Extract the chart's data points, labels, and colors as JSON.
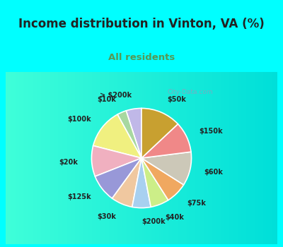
{
  "title": "Income distribution in Vinton, VA (%)",
  "subtitle": "All residents",
  "title_fontsize": 12,
  "subtitle_fontsize": 9.5,
  "bg_cyan": "#00FFFF",
  "bg_chart_color": "#e8f5ee",
  "labels": [
    "> $200k",
    "$10k",
    "$100k",
    "$20k",
    "$125k",
    "$30k",
    "$200k",
    "$40k",
    "$75k",
    "$60k",
    "$150k",
    "$50k"
  ],
  "values": [
    5,
    3,
    13,
    10,
    9,
    7,
    6,
    6,
    7,
    11,
    10,
    13
  ],
  "colors": [
    "#c0b8e8",
    "#a8d8a0",
    "#f0f080",
    "#f0b0c0",
    "#9898d8",
    "#f0c8a0",
    "#a8d0f0",
    "#ccee88",
    "#f0a860",
    "#ccc8b8",
    "#f08888",
    "#c8a030"
  ],
  "startangle": 90,
  "label_distance": 1.28,
  "label_fontsize": 7,
  "watermark": "City-Data.com"
}
